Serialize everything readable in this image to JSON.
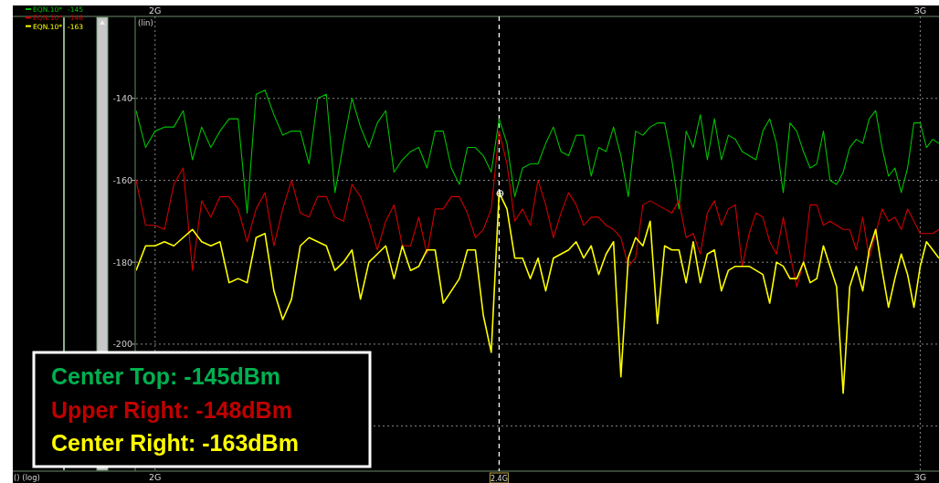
{
  "chart_data": {
    "type": "line",
    "ylabel": "(lin)",
    "log": "x",
    "xlim": [
      1.98,
      3.03
    ],
    "xticks": [
      {
        "value": 2,
        "label": "2G"
      },
      {
        "value": 3,
        "label": "3G"
      }
    ],
    "x2lim": [
      1.98,
      3.03
    ],
    "x2ticks": [
      {
        "value": 2,
        "label": "2G"
      },
      {
        "value": 3,
        "label": "3G"
      }
    ],
    "ylim": [
      -231,
      -120
    ],
    "yticks": [
      -140,
      -160,
      -180,
      -200,
      {
        "value": -220,
        "label": null
      }
    ],
    "grid": true,
    "legend": "top left",
    "line_style": "solid",
    "marker": "none",
    "x": [
      1.98,
      1.99,
      2.0,
      2.01,
      2.02,
      2.03,
      2.04,
      2.05,
      2.06,
      2.07,
      2.08,
      2.09,
      2.1,
      2.11,
      2.12,
      2.13,
      2.14,
      2.15,
      2.16,
      2.17,
      2.18,
      2.19,
      2.2,
      2.21,
      2.22,
      2.23,
      2.24,
      2.25,
      2.26,
      2.27,
      2.28,
      2.29,
      2.3,
      2.31,
      2.32,
      2.33,
      2.34,
      2.35,
      2.36,
      2.37,
      2.38,
      2.39,
      2.4,
      2.41,
      2.42,
      2.43,
      2.44,
      2.45,
      2.46,
      2.47,
      2.48,
      2.49,
      2.5,
      2.51,
      2.52,
      2.53,
      2.54,
      2.55,
      2.56,
      2.57,
      2.58,
      2.59,
      2.6,
      2.61,
      2.62,
      2.63,
      2.64,
      2.65,
      2.66,
      2.67,
      2.68,
      2.69,
      2.7,
      2.71,
      2.72,
      2.73,
      2.74,
      2.75,
      2.76,
      2.77,
      2.78,
      2.79,
      2.8,
      2.81,
      2.82,
      2.83,
      2.84,
      2.85,
      2.86,
      2.87,
      2.88,
      2.89,
      2.9,
      2.91,
      2.92,
      2.93,
      2.94,
      2.95,
      2.96,
      2.97,
      2.98,
      2.99,
      3.0,
      3.01,
      3.02,
      3.03
    ],
    "series": [
      {
        "name": "EQN.10*",
        "color": "#00c000",
        "values": [
          -143,
          -152,
          -148,
          -147,
          -147,
          -143,
          -155,
          -147,
          -152,
          -148,
          -145,
          -145,
          -168,
          -139,
          -138,
          -144,
          -149,
          -148,
          -148,
          -156,
          -140,
          -139,
          -163,
          -151,
          -140,
          -147,
          -152,
          -146,
          -143,
          -158,
          -155,
          -153,
          -152,
          -157,
          -148,
          -148,
          -157,
          -161,
          -152,
          -152,
          -154,
          -158,
          -145,
          -151,
          -164,
          -157,
          -156,
          -156,
          -151,
          -147,
          -153,
          -154,
          -149,
          -149,
          -159,
          -152,
          -153,
          -147,
          -154,
          -164,
          -148,
          -149,
          -147,
          -146,
          -146,
          -155,
          -167,
          -148,
          -152,
          -144,
          -155,
          -145,
          -155,
          -149,
          -150,
          -153,
          -154,
          -155,
          -148,
          -145,
          -151,
          -163,
          -146,
          -148,
          -153,
          -157,
          -156,
          -148,
          -160,
          -161,
          -158,
          -152,
          -150,
          -151,
          -145,
          -143,
          -152,
          -159,
          -157,
          -163,
          -157,
          -146,
          -146,
          -152,
          -150,
          -151
        ]
      },
      {
        "name": "EQN.10*",
        "color": "#d00000",
        "values": [
          -160,
          -171,
          -171,
          -172,
          -161,
          -157,
          -182,
          -165,
          -169,
          -164,
          -164,
          -167,
          -175,
          -167,
          -163,
          -176,
          -167,
          -160,
          -168,
          -169,
          -164,
          -164,
          -169,
          -170,
          -161,
          -164,
          -170,
          -177,
          -170,
          -166,
          -176,
          -176,
          -169,
          -178,
          -167,
          -167,
          -164,
          -164,
          -168,
          -174,
          -172,
          -167,
          -148,
          -156,
          -170,
          -167,
          -171,
          -160,
          -166,
          -174,
          -168,
          -163,
          -166,
          -171,
          -169,
          -169,
          -171,
          -172,
          -174,
          -181,
          -179,
          -166,
          -165,
          -166,
          -167,
          -168,
          -165,
          -174,
          -173,
          -178,
          -168,
          -165,
          -171,
          -167,
          -166,
          -181,
          -173,
          -168,
          -169,
          -175,
          -178,
          -169,
          -178,
          -186,
          -180,
          -166,
          -166,
          -171,
          -170,
          -171,
          -172,
          -172,
          -177,
          -169,
          -179,
          -173,
          -167,
          -170,
          -169,
          -172,
          -167,
          -170,
          -173,
          -173,
          -173,
          -172
        ]
      },
      {
        "name": "EQN.10*",
        "color": "#ffff00",
        "values": [
          -182,
          -176,
          -176,
          -175,
          -176,
          -174,
          -172,
          -175,
          -176,
          -175,
          -185,
          -184,
          -185,
          -174,
          -173,
          -187,
          -194,
          -189,
          -176,
          -174,
          -175,
          -176,
          -182,
          -180,
          -177,
          -189,
          -180,
          -178,
          -176,
          -184,
          -176,
          -182,
          -181,
          -177,
          -177,
          -190,
          -187,
          -184,
          -177,
          -177,
          -193,
          -202,
          -163,
          -167,
          -179,
          -179,
          -184,
          -179,
          -187,
          -179,
          -178,
          -177,
          -175,
          -179,
          -176,
          -183,
          -178,
          -175,
          -208,
          -179,
          -174,
          -176,
          -170,
          -195,
          -176,
          -177,
          -177,
          -185,
          -175,
          -185,
          -178,
          -177,
          -187,
          -182,
          -181,
          -181,
          -181,
          -182,
          -183,
          -190,
          -180,
          -181,
          -184,
          -184,
          -180,
          -185,
          -184,
          -176,
          -181,
          -186,
          -212,
          -186,
          -181,
          -187,
          -177,
          -172,
          -182,
          -191,
          -184,
          -178,
          -183,
          -191,
          -181,
          -175,
          -177,
          -179
        ]
      }
    ],
    "ref_lines": [
      {
        "axis": "x",
        "value": 2.4,
        "label": "2.4G",
        "color": "#ffffff",
        "line_style": "dashed"
      }
    ],
    "annotations": [
      "-145",
      "-148",
      "-163",
      "Center Top: -145dBm",
      "Upper Right: -148dBm",
      "Center Right: -163dBm",
      "() (log)"
    ]
  }
}
